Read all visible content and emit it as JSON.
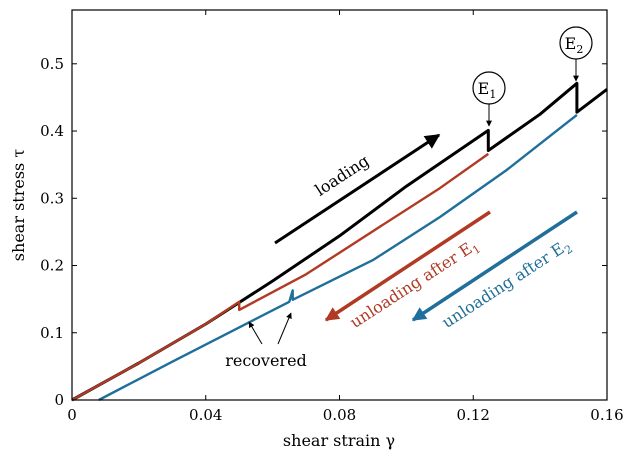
{
  "chart_data": {
    "type": "line",
    "xlabel": "shear strain γ",
    "ylabel": "shear stress τ",
    "xlim": [
      0,
      0.16
    ],
    "ylim": [
      0,
      0.58
    ],
    "xticks": [
      0,
      0.04,
      0.08,
      0.12,
      0.16
    ],
    "yticks": [
      0,
      0.1,
      0.2,
      0.3,
      0.4,
      0.5
    ],
    "xtick_labels": [
      "0",
      "0.04",
      "0.08",
      "0.12",
      "0.16"
    ],
    "ytick_labels": [
      "0",
      "0.1",
      "0.2",
      "0.3",
      "0.4",
      "0.5"
    ],
    "grid": false,
    "series": [
      {
        "color": "#000000",
        "points": [
          [
            0,
            0
          ],
          [
            0.02,
            0.055
          ],
          [
            0.04,
            0.113
          ],
          [
            0.06,
            0.177
          ],
          [
            0.08,
            0.244
          ],
          [
            0.1,
            0.318
          ],
          [
            0.1245,
            0.401
          ],
          [
            0.1245,
            0.371
          ],
          [
            0.14,
            0.425
          ],
          [
            0.151,
            0.471
          ],
          [
            0.151,
            0.428
          ],
          [
            0.16,
            0.462
          ]
        ]
      },
      {
        "color": "#b03a24",
        "points": [
          [
            0,
            0
          ],
          [
            0.02,
            0.055
          ],
          [
            0.04,
            0.113
          ],
          [
            0.05,
            0.146
          ],
          [
            0.05,
            0.134
          ],
          [
            0.07,
            0.187
          ],
          [
            0.09,
            0.251
          ],
          [
            0.11,
            0.315
          ],
          [
            0.1245,
            0.366
          ]
        ]
      },
      {
        "color": "#1f6f9a",
        "points": [
          [
            0.008,
            0
          ],
          [
            0.03,
            0.057
          ],
          [
            0.05,
            0.108
          ],
          [
            0.065,
            0.146
          ],
          [
            0.066,
            0.163
          ],
          [
            0.066,
            0.149
          ],
          [
            0.09,
            0.208
          ],
          [
            0.11,
            0.272
          ],
          [
            0.13,
            0.342
          ],
          [
            0.151,
            0.424
          ]
        ]
      }
    ],
    "annotations": {
      "loading": "loading",
      "unloading_e1": "unloading after E",
      "unloading_e1_sub": "1",
      "unloading_e2": "unloading after E",
      "unloading_e2_sub": "2",
      "recovered": "recovered",
      "e1_letter": "E",
      "e1_sub": "1",
      "e2_letter": "E",
      "e2_sub": "2"
    },
    "colors": {
      "black": "#000000",
      "red": "#b03a24",
      "blue": "#1f6f9a"
    }
  }
}
